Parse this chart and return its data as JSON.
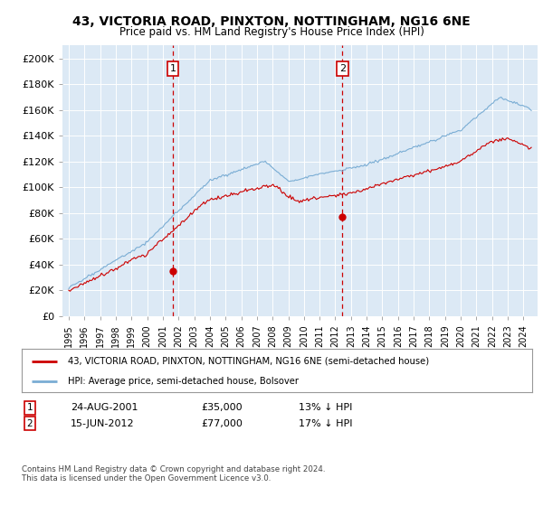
{
  "title": "43, VICTORIA ROAD, PINXTON, NOTTINGHAM, NG16 6NE",
  "subtitle": "Price paid vs. HM Land Registry's House Price Index (HPI)",
  "legend_line1": "43, VICTORIA ROAD, PINXTON, NOTTINGHAM, NG16 6NE (semi-detached house)",
  "legend_line2": "HPI: Average price, semi-detached house, Bolsover",
  "annotation1_label": "1",
  "annotation1_date": "24-AUG-2001",
  "annotation1_price": "£35,000",
  "annotation1_hpi": "13% ↓ HPI",
  "annotation2_label": "2",
  "annotation2_date": "15-JUN-2012",
  "annotation2_price": "£77,000",
  "annotation2_hpi": "17% ↓ HPI",
  "footer1": "Contains HM Land Registry data © Crown copyright and database right 2024.",
  "footer2": "This data is licensed under the Open Government Licence v3.0.",
  "ylim": [
    0,
    210000
  ],
  "yticks": [
    0,
    20000,
    40000,
    60000,
    80000,
    100000,
    120000,
    140000,
    160000,
    180000,
    200000
  ],
  "ytick_labels": [
    "£0",
    "£20K",
    "£40K",
    "£60K",
    "£80K",
    "£100K",
    "£120K",
    "£140K",
    "£160K",
    "£180K",
    "£200K"
  ],
  "plot_background": "#dce9f5",
  "red_line_color": "#cc0000",
  "blue_line_color": "#7aadd4",
  "vline_color": "#cc0000",
  "marker1_x_year": 2001.64,
  "marker1_y": 35000,
  "marker2_x_year": 2012.46,
  "marker2_y": 77000,
  "ann_box_color": "#cc0000",
  "xlim_left": 1994.6,
  "xlim_right": 2024.9
}
